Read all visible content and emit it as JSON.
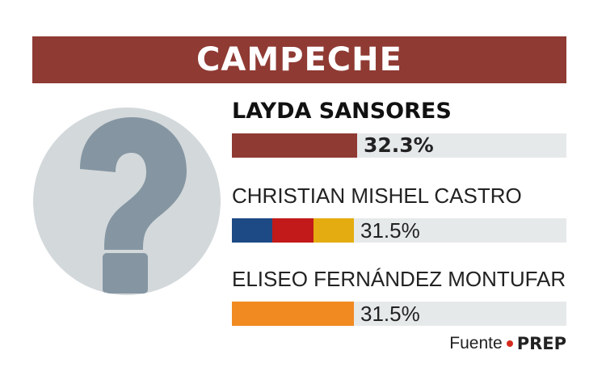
{
  "colors": {
    "banner": "#8f3a33",
    "winner_bar": "#8f3a33",
    "track": "#e6e9ea",
    "avatar_bg": "#d3d8db",
    "question_mark": "#8596a2",
    "source_dot": "#d42b1e"
  },
  "banner": {
    "title": "CAMPECHE"
  },
  "avatar": {
    "icon": "question-mark-icon"
  },
  "source": {
    "label": "Fuente",
    "name": "PREP"
  },
  "chart_data": {
    "type": "bar",
    "orientation": "horizontal",
    "title": "CAMPECHE",
    "xlim": [
      0,
      100
    ],
    "categories": [
      "LAYDA SANSORES",
      "CHRISTIAN MISHEL CASTRO",
      "ELISEO FERNÁNDEZ MONTUFAR"
    ],
    "values": [
      32.3,
      31.5,
      31.5
    ],
    "labels": [
      "32.3%",
      "31.5%",
      "31.5%"
    ],
    "winner_index": 0,
    "bar_colors": [
      [
        "#8f3a33"
      ],
      [
        "#1d4a85",
        "#c21a1a",
        "#e4ac10"
      ],
      [
        "#f08a21"
      ]
    ]
  }
}
